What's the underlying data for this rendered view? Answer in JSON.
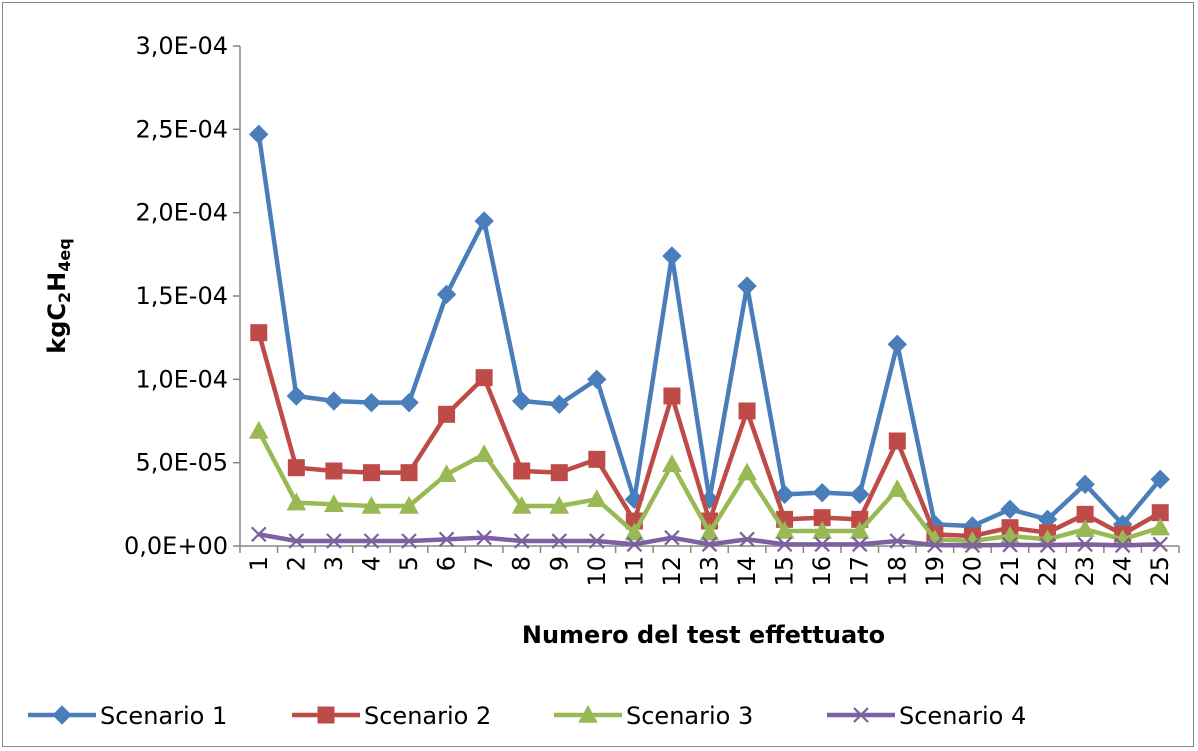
{
  "chart_data": {
    "type": "line",
    "title": "",
    "xlabel": "Numero del test effettuato",
    "ylabel": {
      "base": "kgC",
      "sub1": "2",
      "mid": "H",
      "sub2": "4eq"
    },
    "x": [
      "1",
      "2",
      "3",
      "4",
      "5",
      "6",
      "7",
      "8",
      "9",
      "10",
      "11",
      "12",
      "13",
      "14",
      "15",
      "16",
      "17",
      "18",
      "19",
      "20",
      "21",
      "22",
      "23",
      "24",
      "25"
    ],
    "ylim": [
      0,
      0.0003
    ],
    "yticks": [
      {
        "value": 0,
        "label": "0,0E+00"
      },
      {
        "value": 5e-05,
        "label": "5,0E-05"
      },
      {
        "value": 0.0001,
        "label": "1,0E-04"
      },
      {
        "value": 0.00015,
        "label": "1,5E-04"
      },
      {
        "value": 0.0002,
        "label": "2,0E-04"
      },
      {
        "value": 0.00025,
        "label": "2,5E-04"
      },
      {
        "value": 0.0003,
        "label": "3,0E-04"
      }
    ],
    "grid": false,
    "legend_position": "bottom",
    "series": [
      {
        "name": "Scenario 1",
        "color": "#4a7ebb",
        "marker": "diamond",
        "values": [
          0.000247,
          9e-05,
          8.7e-05,
          8.6e-05,
          8.6e-05,
          0.000151,
          0.000195,
          8.7e-05,
          8.5e-05,
          0.0001,
          2.8e-05,
          0.000174,
          2.8e-05,
          0.000156,
          3.1e-05,
          3.2e-05,
          3.1e-05,
          0.000121,
          1.3e-05,
          1.2e-05,
          2.2e-05,
          1.6e-05,
          3.7e-05,
          1.3e-05,
          4e-05
        ]
      },
      {
        "name": "Scenario 2",
        "color": "#be4b48",
        "marker": "square",
        "values": [
          0.000128,
          4.7e-05,
          4.5e-05,
          4.4e-05,
          4.4e-05,
          7.9e-05,
          0.000101,
          4.5e-05,
          4.4e-05,
          5.2e-05,
          1.5e-05,
          9e-05,
          1.5e-05,
          8.1e-05,
          1.6e-05,
          1.7e-05,
          1.6e-05,
          6.3e-05,
          7e-06,
          6e-06,
          1.1e-05,
          8e-06,
          1.9e-05,
          7e-06,
          2e-05
        ]
      },
      {
        "name": "Scenario 3",
        "color": "#98b954",
        "marker": "triangle",
        "values": [
          6.9e-05,
          2.6e-05,
          2.5e-05,
          2.4e-05,
          2.4e-05,
          4.3e-05,
          5.5e-05,
          2.4e-05,
          2.4e-05,
          2.8e-05,
          8e-06,
          4.9e-05,
          8e-06,
          4.4e-05,
          9e-06,
          9e-06,
          9e-06,
          3.4e-05,
          4e-06,
          3e-06,
          6e-06,
          4e-06,
          1e-05,
          4e-06,
          1.1e-05
        ]
      },
      {
        "name": "Scenario 4",
        "color": "#7d60a0",
        "marker": "x",
        "values": [
          7e-06,
          3e-06,
          3e-06,
          3e-06,
          3e-06,
          4e-06,
          5e-06,
          3e-06,
          3e-06,
          3e-06,
          1e-06,
          5e-06,
          1e-06,
          4e-06,
          1e-06,
          1e-06,
          1e-06,
          3e-06,
          5e-07,
          4e-07,
          7e-07,
          5e-07,
          1e-06,
          4e-07,
          1e-06
        ]
      }
    ]
  }
}
